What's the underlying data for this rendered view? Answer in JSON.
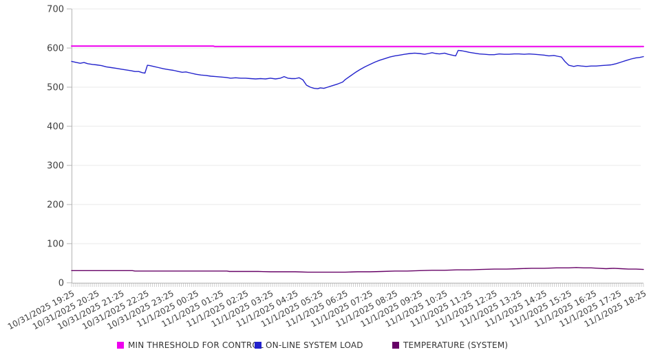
{
  "chart_data": {
    "type": "line",
    "title": "",
    "x_unit": "hours_since_first_label",
    "x_axis": {
      "labels": [
        "10/31/2025 19:25",
        "10/31/2025 20:25",
        "10/31/2025 21:25",
        "10/31/2025 22:25",
        "10/31/2025 23:25",
        "11/1/2025 00:25",
        "11/1/2025 01:25",
        "11/1/2025 02:25",
        "11/1/2025 03:25",
        "11/1/2025 04:25",
        "11/1/2025 05:25",
        "11/1/2025 06:25",
        "11/1/2025 07:25",
        "11/1/2025 08:25",
        "11/1/2025 09:25",
        "11/1/2025 10:25",
        "11/1/2025 11:25",
        "11/1/2025 12:25",
        "11/1/2025 13:25",
        "11/1/2025 14:25",
        "11/1/2025 15:25",
        "11/1/2025 16:25",
        "11/1/2025 17:25",
        "11/1/2025 18:25"
      ],
      "minor_ticks_per_hour": 12
    },
    "y_axis": {
      "min": 0,
      "max": 700,
      "tick_step": 100
    },
    "grid": true,
    "legend_position": "bottom",
    "series": [
      {
        "name": "MIN THRESHOLD FOR CONTROL",
        "color": "#ee00ee",
        "width": 2,
        "points": [
          [
            0,
            605
          ],
          [
            5.7,
            605
          ],
          [
            5.75,
            604
          ],
          [
            23,
            604
          ]
        ]
      },
      {
        "name": "ON-LINE SYSTEM LOAD",
        "color": "#2222cc",
        "width": 1.4,
        "points": [
          [
            0,
            566
          ],
          [
            0.2,
            563
          ],
          [
            0.35,
            561
          ],
          [
            0.5,
            563
          ],
          [
            0.65,
            560
          ],
          [
            0.85,
            558
          ],
          [
            1,
            557
          ],
          [
            1.2,
            555
          ],
          [
            1.4,
            552
          ],
          [
            1.6,
            550
          ],
          [
            1.8,
            548
          ],
          [
            2,
            546
          ],
          [
            2.2,
            544
          ],
          [
            2.4,
            542
          ],
          [
            2.55,
            540
          ],
          [
            2.7,
            540
          ],
          [
            2.85,
            537
          ],
          [
            2.95,
            536
          ],
          [
            3.05,
            556
          ],
          [
            3.15,
            555
          ],
          [
            3.3,
            553
          ],
          [
            3.5,
            550
          ],
          [
            3.7,
            547
          ],
          [
            3.9,
            545
          ],
          [
            4.1,
            543
          ],
          [
            4.3,
            540
          ],
          [
            4.45,
            538
          ],
          [
            4.6,
            539
          ],
          [
            4.8,
            536
          ],
          [
            5,
            533
          ],
          [
            5.2,
            531
          ],
          [
            5.4,
            530
          ],
          [
            5.6,
            528
          ],
          [
            5.8,
            527
          ],
          [
            6,
            526
          ],
          [
            6.2,
            525
          ],
          [
            6.4,
            523
          ],
          [
            6.6,
            524
          ],
          [
            6.8,
            523
          ],
          [
            7,
            523
          ],
          [
            7.2,
            522
          ],
          [
            7.4,
            521
          ],
          [
            7.6,
            522
          ],
          [
            7.8,
            521
          ],
          [
            8,
            523
          ],
          [
            8.2,
            521
          ],
          [
            8.4,
            523
          ],
          [
            8.55,
            527
          ],
          [
            8.7,
            523
          ],
          [
            8.85,
            522
          ],
          [
            9,
            522
          ],
          [
            9.15,
            524
          ],
          [
            9.3,
            519
          ],
          [
            9.45,
            505
          ],
          [
            9.6,
            500
          ],
          [
            9.75,
            497
          ],
          [
            9.9,
            496
          ],
          [
            10,
            498
          ],
          [
            10.15,
            497
          ],
          [
            10.3,
            500
          ],
          [
            10.5,
            504
          ],
          [
            10.7,
            508
          ],
          [
            10.9,
            513
          ],
          [
            11,
            519
          ],
          [
            11.2,
            528
          ],
          [
            11.4,
            537
          ],
          [
            11.6,
            545
          ],
          [
            11.8,
            552
          ],
          [
            12,
            558
          ],
          [
            12.2,
            564
          ],
          [
            12.4,
            569
          ],
          [
            12.6,
            573
          ],
          [
            12.8,
            577
          ],
          [
            13,
            580
          ],
          [
            13.2,
            582
          ],
          [
            13.4,
            584
          ],
          [
            13.6,
            586
          ],
          [
            13.8,
            587
          ],
          [
            14,
            586
          ],
          [
            14.2,
            584
          ],
          [
            14.35,
            586
          ],
          [
            14.5,
            588
          ],
          [
            14.65,
            586
          ],
          [
            14.8,
            585
          ],
          [
            15,
            587
          ],
          [
            15.15,
            584
          ],
          [
            15.3,
            582
          ],
          [
            15.45,
            580
          ],
          [
            15.55,
            594
          ],
          [
            15.7,
            593
          ],
          [
            15.85,
            591
          ],
          [
            16,
            589
          ],
          [
            16.2,
            587
          ],
          [
            16.4,
            585
          ],
          [
            16.6,
            584
          ],
          [
            16.8,
            583
          ],
          [
            17,
            583
          ],
          [
            17.2,
            585
          ],
          [
            17.4,
            584
          ],
          [
            17.6,
            584
          ],
          [
            17.8,
            585
          ],
          [
            18,
            585
          ],
          [
            18.2,
            584
          ],
          [
            18.4,
            585
          ],
          [
            18.6,
            584
          ],
          [
            18.8,
            583
          ],
          [
            19,
            582
          ],
          [
            19.2,
            580
          ],
          [
            19.4,
            581
          ],
          [
            19.55,
            579
          ],
          [
            19.7,
            577
          ],
          [
            19.85,
            565
          ],
          [
            20,
            556
          ],
          [
            20.2,
            553
          ],
          [
            20.35,
            555
          ],
          [
            20.5,
            554
          ],
          [
            20.7,
            553
          ],
          [
            20.9,
            554
          ],
          [
            21.1,
            554
          ],
          [
            21.3,
            555
          ],
          [
            21.5,
            556
          ],
          [
            21.7,
            557
          ],
          [
            21.9,
            560
          ],
          [
            22.1,
            564
          ],
          [
            22.3,
            568
          ],
          [
            22.5,
            572
          ],
          [
            22.7,
            575
          ],
          [
            22.85,
            576
          ],
          [
            23,
            578
          ]
        ]
      },
      {
        "name": "TEMPERATURE (SYSTEM)",
        "color": "#660066",
        "width": 1.4,
        "points": [
          [
            0,
            31
          ],
          [
            1,
            31
          ],
          [
            2,
            31
          ],
          [
            2.45,
            31
          ],
          [
            2.55,
            30
          ],
          [
            3,
            30
          ],
          [
            4,
            30
          ],
          [
            5,
            30
          ],
          [
            6,
            30
          ],
          [
            6.25,
            30
          ],
          [
            6.35,
            29
          ],
          [
            7,
            29
          ],
          [
            7.5,
            29
          ],
          [
            8,
            28
          ],
          [
            8.5,
            28
          ],
          [
            9,
            28
          ],
          [
            9.5,
            27
          ],
          [
            10,
            27
          ],
          [
            10.5,
            27
          ],
          [
            11,
            27
          ],
          [
            11.5,
            28
          ],
          [
            12,
            28
          ],
          [
            12.5,
            29
          ],
          [
            13,
            30
          ],
          [
            13.5,
            30
          ],
          [
            14,
            31
          ],
          [
            14.5,
            32
          ],
          [
            15,
            32
          ],
          [
            15.5,
            33
          ],
          [
            16,
            33
          ],
          [
            16.5,
            34
          ],
          [
            17,
            35
          ],
          [
            17.5,
            35
          ],
          [
            18,
            36
          ],
          [
            18.5,
            37
          ],
          [
            19,
            37
          ],
          [
            19.5,
            38
          ],
          [
            20,
            38
          ],
          [
            20.3,
            39
          ],
          [
            20.6,
            38
          ],
          [
            20.9,
            38
          ],
          [
            21.2,
            37
          ],
          [
            21.5,
            36
          ],
          [
            21.8,
            37
          ],
          [
            22.1,
            36
          ],
          [
            22.4,
            35
          ],
          [
            22.7,
            35
          ],
          [
            23,
            34
          ]
        ]
      }
    ]
  },
  "colors": {
    "grid": "#e9e9e9",
    "axis": "#b3b3b3",
    "minor_tick": "#cfcfcf",
    "tick_text": "#3d3d3d",
    "legend_text": "#333333"
  }
}
